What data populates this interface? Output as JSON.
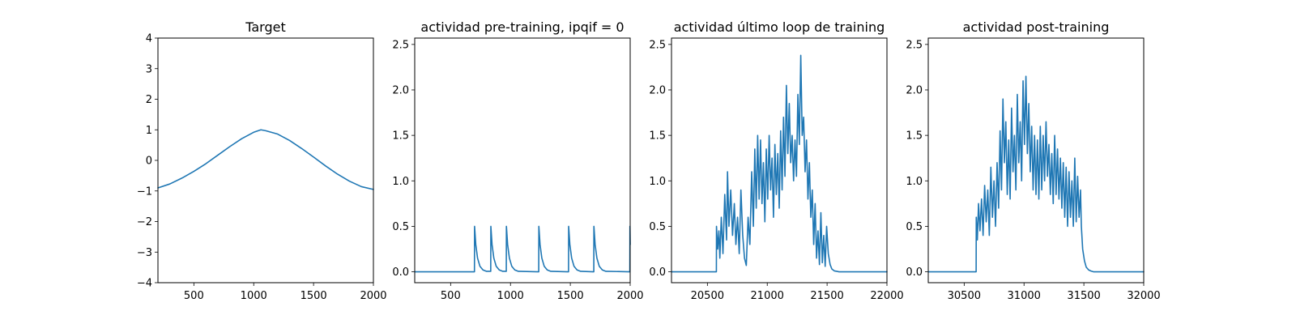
{
  "chart_data": [
    {
      "type": "line",
      "title": "Target",
      "xlabel": "",
      "ylabel": "",
      "xlim": [
        200,
        2000
      ],
      "ylim": [
        -4,
        4
      ],
      "xticks": [
        500,
        1000,
        1500,
        2000
      ],
      "yticks": [
        -4,
        -3,
        -2,
        -1,
        0,
        1,
        2,
        3,
        4
      ],
      "xtick_labels": [
        "500",
        "1000",
        "1500",
        "2000"
      ],
      "ytick_labels": [
        "−4",
        "−3",
        "−2",
        "−1",
        "0",
        "1",
        "2",
        "3",
        "4"
      ],
      "series": [
        {
          "color": "#1f77b4",
          "x": [
            200,
            300,
            400,
            500,
            600,
            700,
            800,
            900,
            1000,
            1060,
            1100,
            1200,
            1300,
            1400,
            1500,
            1600,
            1700,
            1800,
            1900,
            2000
          ],
          "y": [
            -0.9,
            -0.77,
            -0.58,
            -0.36,
            -0.11,
            0.17,
            0.45,
            0.71,
            0.92,
            1.0,
            0.97,
            0.86,
            0.65,
            0.39,
            0.11,
            -0.18,
            -0.45,
            -0.68,
            -0.86,
            -0.95
          ]
        }
      ]
    },
    {
      "type": "line",
      "title": "actividad pre-training, ipqif = 0",
      "xlabel": "",
      "ylabel": "",
      "xlim": [
        200,
        2000
      ],
      "ylim": [
        -0.12,
        2.57
      ],
      "xticks": [
        500,
        1000,
        1500,
        2000
      ],
      "yticks": [
        0.0,
        0.5,
        1.0,
        1.5,
        2.0,
        2.5
      ],
      "xtick_labels": [
        "500",
        "1000",
        "1500",
        "2000"
      ],
      "ytick_labels": [
        "0.0",
        "0.5",
        "1.0",
        "1.5",
        "2.0",
        "2.5"
      ],
      "series": [
        {
          "color": "#1f77b4",
          "x": [
            200,
            699,
            700,
            710,
            725,
            745,
            770,
            800,
            835,
            836,
            846,
            861,
            881,
            906,
            936,
            965,
            966,
            976,
            991,
            1011,
            1036,
            1066,
            1236,
            1237,
            1247,
            1262,
            1282,
            1307,
            1337,
            1485,
            1486,
            1496,
            1511,
            1531,
            1556,
            1586,
            1696,
            1697,
            1707,
            1722,
            1742,
            1767,
            1797,
            1997,
            1998,
            2000
          ],
          "y": [
            0,
            0,
            0.5,
            0.3,
            0.15,
            0.06,
            0.02,
            0.005,
            0.005,
            0.5,
            0.3,
            0.15,
            0.06,
            0.02,
            0.005,
            0.005,
            0.5,
            0.3,
            0.15,
            0.06,
            0.02,
            0.005,
            0.0,
            0.5,
            0.3,
            0.15,
            0.06,
            0.02,
            0.005,
            0.0,
            0.5,
            0.3,
            0.15,
            0.06,
            0.02,
            0.005,
            0.0,
            0.5,
            0.3,
            0.15,
            0.06,
            0.02,
            0.005,
            0.0,
            0.5,
            0.3
          ]
        }
      ]
    },
    {
      "type": "line",
      "title": "actividad último loop de training",
      "xlabel": "",
      "ylabel": "",
      "xlim": [
        20200,
        22000
      ],
      "ylim": [
        -0.12,
        2.57
      ],
      "xticks": [
        20500,
        21000,
        21500,
        22000
      ],
      "yticks": [
        0.0,
        0.5,
        1.0,
        1.5,
        2.0,
        2.5
      ],
      "xtick_labels": [
        "20500",
        "21000",
        "21500",
        "22000"
      ],
      "ytick_labels": [
        "0.0",
        "0.5",
        "1.0",
        "1.5",
        "2.0",
        "2.5"
      ],
      "series": [
        {
          "color": "#1f77b4",
          "x": [
            20200,
            20575,
            20576,
            20586,
            20596,
            20604,
            20616,
            20630,
            20645,
            20660,
            20668,
            20680,
            20695,
            20710,
            20725,
            20738,
            20752,
            20766,
            20780,
            20795,
            20810,
            20825,
            20840,
            20855,
            20870,
            20884,
            20896,
            20908,
            20920,
            20932,
            20944,
            20956,
            20968,
            20980,
            20992,
            21004,
            21016,
            21028,
            21040,
            21052,
            21064,
            21076,
            21088,
            21100,
            21112,
            21124,
            21136,
            21148,
            21160,
            21172,
            21184,
            21196,
            21208,
            21220,
            21232,
            21244,
            21256,
            21268,
            21280,
            21292,
            21304,
            21316,
            21328,
            21340,
            21352,
            21364,
            21376,
            21388,
            21400,
            21412,
            21424,
            21436,
            21448,
            21460,
            21472,
            21484,
            21496,
            21510,
            21525,
            21540,
            21560,
            21580,
            21600,
            22000
          ],
          "y": [
            0,
            0,
            0.5,
            0.25,
            0.45,
            0.15,
            0.6,
            0.2,
            0.85,
            0.35,
            1.1,
            0.5,
            0.9,
            0.4,
            0.75,
            0.3,
            0.6,
            0.2,
            0.9,
            0.4,
            0.15,
            0.07,
            0.6,
            0.3,
            1.1,
            0.5,
            1.35,
            0.7,
            1.5,
            0.8,
            1.45,
            0.75,
            1.2,
            0.55,
            1.35,
            0.8,
            1.5,
            0.9,
            1.25,
            0.6,
            1.4,
            0.85,
            1.3,
            0.7,
            1.55,
            0.9,
            1.7,
            1.05,
            2.05,
            1.3,
            1.85,
            1.2,
            1.5,
            1.0,
            1.45,
            1.05,
            1.95,
            1.4,
            2.38,
            1.5,
            1.7,
            1.1,
            1.45,
            0.8,
            1.2,
            0.6,
            0.9,
            0.3,
            0.75,
            0.15,
            0.45,
            0.08,
            0.65,
            0.1,
            0.4,
            0.06,
            0.5,
            0.2,
            0.08,
            0.03,
            0.01,
            0.005,
            0,
            0
          ]
        }
      ]
    },
    {
      "type": "line",
      "title": "actividad post-training",
      "xlabel": "",
      "ylabel": "",
      "xlim": [
        30200,
        32000
      ],
      "ylim": [
        -0.12,
        2.57
      ],
      "xticks": [
        30500,
        31000,
        31500,
        32000
      ],
      "yticks": [
        0.0,
        0.5,
        1.0,
        1.5,
        2.0,
        2.5
      ],
      "xtick_labels": [
        "30500",
        "31000",
        "31500",
        "32000"
      ],
      "ytick_labels": [
        "0.0",
        "0.5",
        "1.0",
        "1.5",
        "2.0",
        "2.5"
      ],
      "series": [
        {
          "color": "#1f77b4",
          "x": [
            30200,
            30600,
            30601,
            30610,
            30620,
            30632,
            30645,
            30658,
            30671,
            30684,
            30697,
            30710,
            30723,
            30736,
            30749,
            30762,
            30775,
            30788,
            30800,
            30812,
            30824,
            30836,
            30848,
            30860,
            30872,
            30884,
            30896,
            30908,
            30920,
            30932,
            30944,
            30956,
            30968,
            30980,
            30992,
            31004,
            31016,
            31028,
            31040,
            31052,
            31064,
            31076,
            31088,
            31100,
            31112,
            31124,
            31136,
            31148,
            31160,
            31172,
            31184,
            31196,
            31208,
            31220,
            31232,
            31244,
            31256,
            31268,
            31280,
            31292,
            31304,
            31316,
            31328,
            31340,
            31352,
            31364,
            31376,
            31388,
            31400,
            31412,
            31424,
            31436,
            31448,
            31460,
            31472,
            31478,
            31479,
            31490,
            31505,
            31520,
            31540,
            31560,
            31580,
            32000
          ],
          "y": [
            0,
            0,
            0.6,
            0.35,
            0.75,
            0.45,
            0.8,
            0.4,
            0.95,
            0.55,
            0.9,
            0.4,
            1.15,
            0.6,
            1.0,
            0.5,
            1.2,
            0.7,
            1.55,
            0.9,
            1.9,
            1.2,
            1.65,
            0.85,
            1.45,
            0.8,
            1.8,
            1.1,
            1.5,
            0.9,
            1.95,
            1.2,
            1.65,
            1.0,
            2.1,
            1.4,
            2.15,
            1.3,
            1.85,
            1.1,
            1.6,
            0.9,
            1.5,
            0.85,
            1.45,
            0.8,
            1.6,
            0.9,
            1.5,
            1.0,
            1.65,
            1.05,
            1.4,
            0.85,
            1.3,
            0.75,
            1.5,
            0.85,
            1.35,
            0.8,
            1.25,
            0.7,
            1.2,
            0.6,
            1.15,
            0.5,
            1.1,
            0.6,
            1.0,
            0.5,
            1.25,
            0.55,
            1.05,
            0.6,
            0.9,
            0.55,
            0.5,
            0.25,
            0.12,
            0.05,
            0.02,
            0.008,
            0,
            0
          ]
        }
      ]
    }
  ]
}
